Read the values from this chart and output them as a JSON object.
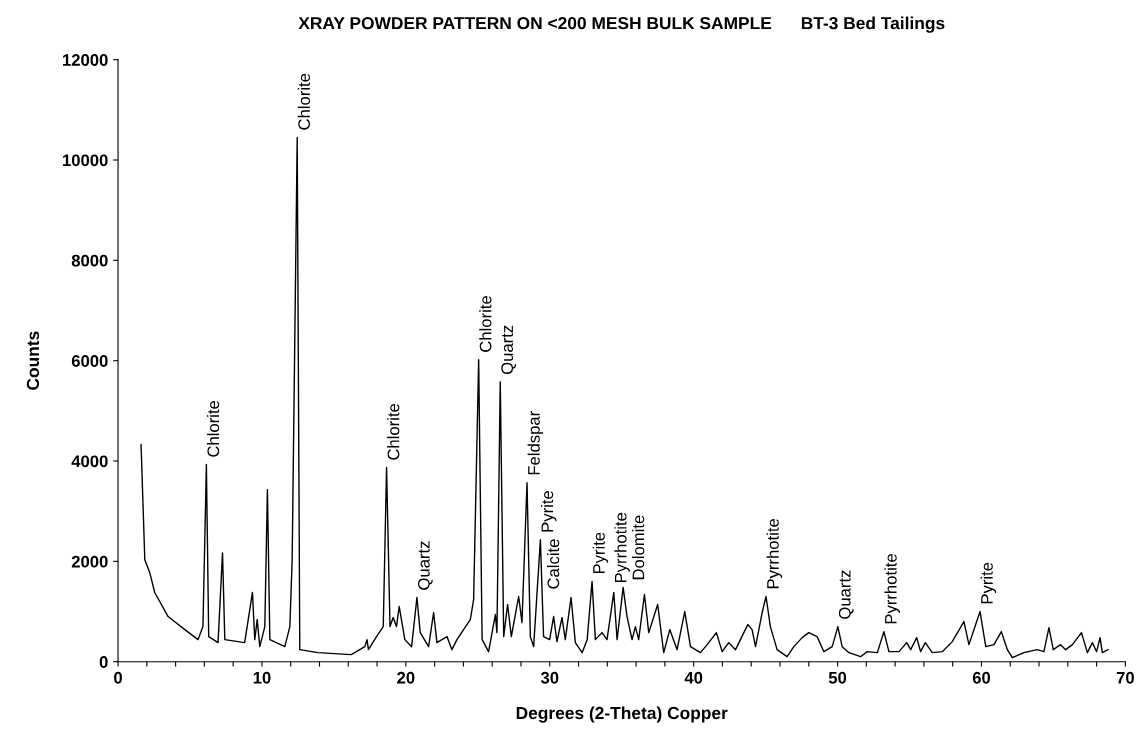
{
  "chart_data": {
    "type": "line",
    "title": "XRAY POWDER PATTERN ON <200 MESH BULK SAMPLE      BT-3 Bed Tailings",
    "xlabel": "Degrees (2-Theta) Copper",
    "ylabel": "Counts",
    "x": [
      1.6,
      1.86,
      2.2,
      2.55,
      3.48,
      4.64,
      5.56,
      5.9,
      6.14,
      6.3,
      6.95,
      7.26,
      7.42,
      8.8,
      9.34,
      9.5,
      9.67,
      9.85,
      10.2,
      10.38,
      10.55,
      11.59,
      11.94,
      12.1,
      12.45,
      12.63,
      13.9,
      16.2,
      17.15,
      17.3,
      17.4,
      17.96,
      18.43,
      18.66,
      18.9,
      19.12,
      19.35,
      19.54,
      19.93,
      20.4,
      20.77,
      21.0,
      21.58,
      21.93,
      22.16,
      22.86,
      23.2,
      23.55,
      24.01,
      24.48,
      24.71,
      25.06,
      25.3,
      25.75,
      26.22,
      26.33,
      26.56,
      26.8,
      27.07,
      27.33,
      27.84,
      28.07,
      28.42,
      28.65,
      28.88,
      29.35,
      29.57,
      29.99,
      30.27,
      30.5,
      30.85,
      31.08,
      31.48,
      31.78,
      32.25,
      32.6,
      32.94,
      33.17,
      33.63,
      33.98,
      34.45,
      34.68,
      35.1,
      35.37,
      35.72,
      35.95,
      36.18,
      36.58,
      36.88,
      37.5,
      37.92,
      38.34,
      38.85,
      39.38,
      39.78,
      40.47,
      40.94,
      41.58,
      41.98,
      42.44,
      42.91,
      43.25,
      43.76,
      44.06,
      44.3,
      44.76,
      45.03,
      45.33,
      45.8,
      46.49,
      46.96,
      47.54,
      48.0,
      48.58,
      49.05,
      49.63,
      50.02,
      50.32,
      50.79,
      51.6,
      52.06,
      52.76,
      53.22,
      53.57,
      54.27,
      54.8,
      55.08,
      55.5,
      55.77,
      56.1,
      56.58,
      57.28,
      57.97,
      58.78,
      59.13,
      59.9,
      60.3,
      60.87,
      61.38,
      61.8,
      62.14,
      62.95,
      63.88,
      64.34,
      64.69,
      64.99,
      65.5,
      65.85,
      66.32,
      66.95,
      67.36,
      67.71,
      68.0,
      68.24,
      68.4,
      68.8
    ],
    "series": [
      {
        "color": "#000000",
        "values": [
          4330,
          2030,
          1780,
          1380,
          900,
          640,
          440,
          700,
          3930,
          500,
          380,
          2170,
          440,
          380,
          1380,
          440,
          840,
          300,
          700,
          3430,
          440,
          300,
          700,
          2030,
          10450,
          240,
          180,
          140,
          300,
          440,
          240,
          500,
          700,
          3870,
          700,
          880,
          700,
          1100,
          440,
          300,
          1280,
          580,
          300,
          980,
          380,
          500,
          240,
          440,
          640,
          840,
          1240,
          6020,
          440,
          200,
          940,
          580,
          5580,
          500,
          1140,
          500,
          1300,
          780,
          3570,
          500,
          300,
          2430,
          500,
          440,
          900,
          400,
          880,
          440,
          1280,
          380,
          180,
          440,
          1600,
          440,
          580,
          440,
          1380,
          440,
          1480,
          900,
          440,
          700,
          440,
          1340,
          580,
          1140,
          180,
          640,
          240,
          1000,
          300,
          180,
          340,
          580,
          200,
          380,
          240,
          440,
          740,
          640,
          300,
          980,
          1300,
          700,
          240,
          100,
          300,
          480,
          580,
          500,
          200,
          300,
          700,
          300,
          180,
          100,
          200,
          180,
          600,
          200,
          200,
          380,
          240,
          480,
          200,
          380,
          180,
          200,
          400,
          800,
          340,
          1000,
          300,
          340,
          600,
          240,
          80,
          180,
          240,
          200,
          680,
          240,
          340,
          240,
          340,
          580,
          180,
          380,
          200,
          480,
          180,
          240
        ]
      }
    ],
    "xlim": [
      0,
      70
    ],
    "ylim": [
      0,
      12000
    ],
    "xticks": [
      0,
      {
        "value": 2,
        "label": null
      },
      {
        "value": 4,
        "label": null
      },
      {
        "value": 6,
        "label": null
      },
      {
        "value": 8,
        "label": null
      },
      10,
      {
        "value": 12,
        "label": null
      },
      {
        "value": 14,
        "label": null
      },
      {
        "value": 16,
        "label": null
      },
      {
        "value": 18,
        "label": null
      },
      20,
      {
        "value": 22,
        "label": null
      },
      {
        "value": 24,
        "label": null
      },
      {
        "value": 26,
        "label": null
      },
      {
        "value": 28,
        "label": null
      },
      30,
      {
        "value": 32,
        "label": null
      },
      {
        "value": 34,
        "label": null
      },
      {
        "value": 36,
        "label": null
      },
      {
        "value": 38,
        "label": null
      },
      40,
      {
        "value": 42,
        "label": null
      },
      {
        "value": 44,
        "label": null
      },
      {
        "value": 46,
        "label": null
      },
      {
        "value": 48,
        "label": null
      },
      50,
      {
        "value": 52,
        "label": null
      },
      {
        "value": 54,
        "label": null
      },
      {
        "value": 56,
        "label": null
      },
      {
        "value": 58,
        "label": null
      },
      60,
      {
        "value": 62,
        "label": null
      },
      {
        "value": 64,
        "label": null
      },
      {
        "value": 66,
        "label": null
      },
      {
        "value": 68,
        "label": null
      },
      70
    ],
    "yticks": [
      0,
      2000,
      4000,
      6000,
      8000,
      10000,
      12000
    ],
    "grid": false,
    "legend": false,
    "marker": "none",
    "line_style": "solid",
    "annotations": [
      {
        "text": "Chlorite",
        "x": 6.14,
        "y": 3930
      },
      {
        "text": "Chlorite",
        "x": 12.45,
        "y": 10450
      },
      {
        "text": "Chlorite",
        "x": 18.66,
        "y": 3870
      },
      {
        "text": "Quartz",
        "x": 20.77,
        "y": 1280
      },
      {
        "text": "Chlorite",
        "x": 25.06,
        "y": 6020
      },
      {
        "text": "Quartz",
        "x": 26.56,
        "y": 5580
      },
      {
        "text": "Calcite",
        "x": 27.84,
        "y": 1300
      },
      {
        "text": "Feldspar",
        "x": 28.42,
        "y": 3570
      },
      {
        "text": "Pyrite",
        "x": 29.35,
        "y": 2430
      },
      {
        "text": "Pyrite",
        "x": 32.94,
        "y": 1600
      },
      {
        "text": "Pyrrhotite",
        "x": 34.45,
        "y": 1380
      },
      {
        "text": "Dolomite",
        "x": 35.1,
        "y": 1480
      },
      {
        "text": "Pyrrhotite",
        "x": 45.03,
        "y": 1300
      },
      {
        "text": "Quartz",
        "x": 50.02,
        "y": 700
      },
      {
        "text": "Pyrrhotite",
        "x": 53.22,
        "y": 600
      },
      {
        "text": "Pyrite",
        "x": 59.9,
        "y": 1000
      }
    ]
  }
}
